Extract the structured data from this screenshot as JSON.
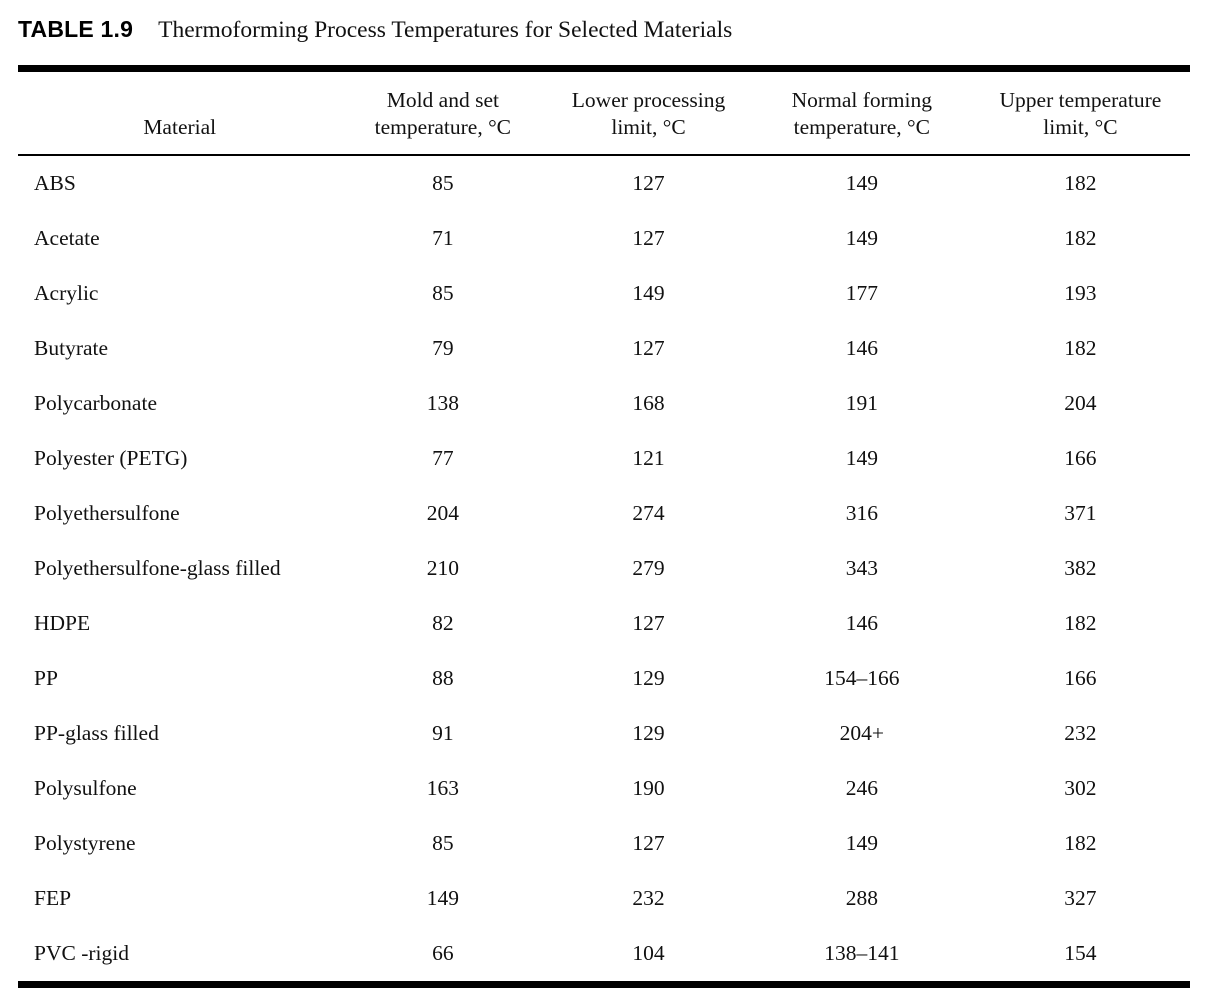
{
  "caption": {
    "label": "TABLE 1.9",
    "title": "Thermoforming Process Temperatures for Selected Materials"
  },
  "table": {
    "columns": [
      {
        "label": "Material"
      },
      {
        "label": "Mold and set\ntemperature, °C"
      },
      {
        "label": "Lower processing\nlimit, °C"
      },
      {
        "label": "Normal forming\ntemperature, °C"
      },
      {
        "label": "Upper temperature\nlimit, °C"
      }
    ],
    "rows": [
      [
        "ABS",
        "85",
        "127",
        "149",
        "182"
      ],
      [
        "Acetate",
        "71",
        "127",
        "149",
        "182"
      ],
      [
        "Acrylic",
        "85",
        "149",
        "177",
        "193"
      ],
      [
        "Butyrate",
        "79",
        "127",
        "146",
        "182"
      ],
      [
        "Polycarbonate",
        "138",
        "168",
        "191",
        "204"
      ],
      [
        "Polyester (PETG)",
        "77",
        "121",
        "149",
        "166"
      ],
      [
        "Polyethersulfone",
        "204",
        "274",
        "316",
        "371"
      ],
      [
        "Polyethersulfone-glass filled",
        "210",
        "279",
        "343",
        "382"
      ],
      [
        "HDPE",
        "82",
        "127",
        "146",
        "182"
      ],
      [
        "PP",
        "88",
        "129",
        "154–166",
        "166"
      ],
      [
        "PP-glass filled",
        "91",
        "129",
        "204+",
        "232"
      ],
      [
        "Polysulfone",
        "163",
        "190",
        "246",
        "302"
      ],
      [
        "Polystyrene",
        "85",
        "127",
        "149",
        "182"
      ],
      [
        "FEP",
        "149",
        "232",
        "288",
        "327"
      ],
      [
        "PVC -rigid",
        "66",
        "104",
        "138–141",
        "154"
      ]
    ]
  }
}
